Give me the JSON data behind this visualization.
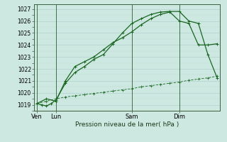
{
  "title": "Pression niveau de la mer( hPa )",
  "bg_color": "#cce8e0",
  "grid_major_color": "#aacccc",
  "grid_minor_color": "#c0ddd8",
  "line_color": "#1a6622",
  "line_color_thin": "#2a7a32",
  "ylim_min": 1018.5,
  "ylim_max": 1027.4,
  "yticks": [
    1019,
    1020,
    1021,
    1022,
    1023,
    1024,
    1025,
    1026,
    1027
  ],
  "xtick_labels": [
    "Ven",
    "Lun",
    "Sam",
    "Dim"
  ],
  "xtick_x": [
    0,
    2,
    10,
    15
  ],
  "vline_x": [
    0,
    2,
    10,
    15
  ],
  "xlim_min": -0.3,
  "xlim_max": 19.3,
  "line1_x": [
    0,
    0.5,
    1,
    1.5,
    2,
    3,
    4,
    5,
    6,
    7,
    8,
    9,
    10,
    11,
    12,
    13,
    14,
    15,
    16,
    17,
    18,
    19
  ],
  "line1_y": [
    1019.1,
    1019.0,
    1018.9,
    1019.1,
    1019.4,
    1020.8,
    1021.7,
    1022.2,
    1022.8,
    1023.2,
    1024.1,
    1025.0,
    1025.8,
    1026.2,
    1026.55,
    1026.75,
    1026.8,
    1026.8,
    1026.0,
    1025.8,
    1023.2,
    1021.2
  ],
  "line2_x": [
    0,
    1,
    2,
    3,
    4,
    5,
    6,
    7,
    8,
    9,
    10,
    11,
    12,
    13,
    14,
    15,
    16,
    17,
    18,
    19
  ],
  "line2_y": [
    1019.1,
    1019.5,
    1019.3,
    1021.0,
    1022.2,
    1022.6,
    1023.0,
    1023.6,
    1024.2,
    1024.6,
    1025.1,
    1025.7,
    1026.2,
    1026.55,
    1026.75,
    1026.0,
    1025.8,
    1024.0,
    1024.0,
    1024.1
  ],
  "line3_x": [
    0,
    1,
    2,
    3,
    4,
    5,
    6,
    7,
    8,
    9,
    10,
    11,
    12,
    13,
    14,
    15,
    16,
    17,
    18,
    19
  ],
  "line3_y": [
    1019.1,
    1019.3,
    1019.5,
    1019.65,
    1019.75,
    1019.85,
    1019.95,
    1020.05,
    1020.15,
    1020.25,
    1020.35,
    1020.5,
    1020.6,
    1020.7,
    1020.8,
    1020.9,
    1021.05,
    1021.15,
    1021.25,
    1021.4
  ]
}
